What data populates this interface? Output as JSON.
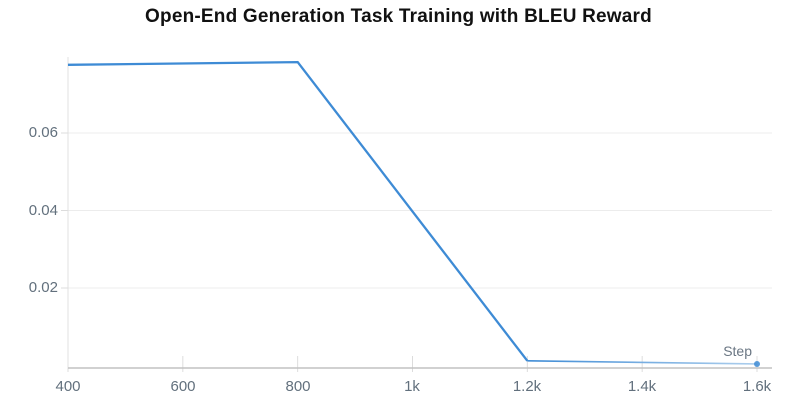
{
  "page": {
    "background": "#ffffff"
  },
  "chart_data": {
    "type": "line",
    "title": "Open-End Generation Task Training with BLEU Reward",
    "xlabel": "Step",
    "ylabel": "",
    "x_ticks": [
      400,
      600,
      800,
      1000,
      1200,
      1400,
      1600
    ],
    "x_tick_labels": [
      "400",
      "600",
      "800",
      "1k",
      "1.2k",
      "1.4k",
      "1.6k"
    ],
    "y_ticks": [
      0.02,
      0.04,
      0.06
    ],
    "y_tick_labels": [
      "0.02",
      "0.04",
      "0.06"
    ],
    "xlim": [
      400,
      1622
    ],
    "ylim": [
      0,
      0.0795
    ],
    "grid": "horizontal-only",
    "legend": "none",
    "series": [
      {
        "name": "BLEU reward",
        "color": "#3e8bd5",
        "tail_fade_color": "#aecfed",
        "x": [
          400,
          800,
          1200,
          1600
        ],
        "values": [
          0.0776,
          0.0783,
          0.0012,
          0.0004
        ],
        "end_marker": "dot"
      }
    ],
    "colors": {
      "line": "#3e8bd5",
      "title_text": "#111111",
      "tick_text": "#62707d",
      "axis_title_text": "#6a7683",
      "gridline": "#ececec",
      "x_axis_line": "#c2c2c2",
      "y_axis_line": "#e0e0e0",
      "tick_mark": "#dcdcdc"
    }
  }
}
